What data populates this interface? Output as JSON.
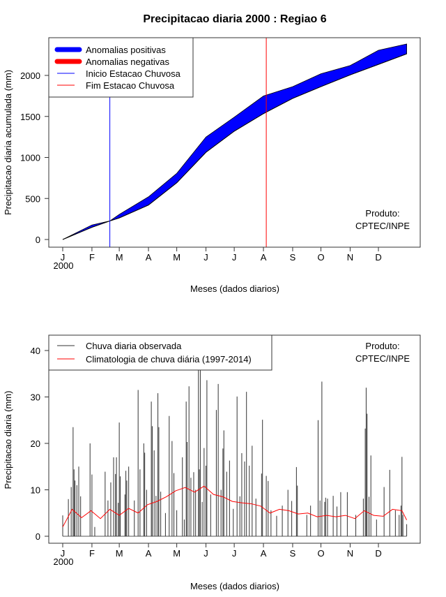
{
  "title": "Precipitacao diaria 2000 : Regiao 6",
  "credit_line1": "Produto:",
  "credit_line2": "CPTEC/INPE",
  "chart_data": [
    {
      "type": "area",
      "ylabel": "Precipitacao diaria acumulada (mm)",
      "xlabel": "Meses (dados diarios)",
      "year_label": "2000",
      "month_ticks": [
        "J",
        "F",
        "M",
        "A",
        "M",
        "J",
        "J",
        "A",
        "S",
        "O",
        "N",
        "D"
      ],
      "month_start_days": [
        1,
        32,
        61,
        92,
        122,
        153,
        183,
        214,
        245,
        275,
        306,
        336
      ],
      "ylim": [
        0,
        2400
      ],
      "yticks": [
        0,
        500,
        1000,
        1500,
        2000
      ],
      "legend": [
        "Anomalias positivas",
        "Anomalias negativas",
        "Inicio Estacao Chuvosa",
        "Fim Estacao Chuvosa"
      ],
      "legend_position": "top-left",
      "colors": {
        "positive": "#0000ff",
        "negative": "#ff0000",
        "start_line": "#0000ff",
        "end_line": "#ff0000"
      },
      "rainy_season_start_day": 51,
      "rainy_season_end_day": 217,
      "observed_cumulative": {
        "days": [
          1,
          32,
          51,
          61,
          92,
          122,
          153,
          183,
          214,
          245,
          275,
          306,
          336,
          366
        ],
        "values": [
          0,
          177,
          226,
          306,
          520,
          806,
          1249,
          1491,
          1749,
          1863,
          2020,
          2120,
          2306,
          2383
        ]
      },
      "climatology_cumulative": {
        "days": [
          1,
          32,
          51,
          61,
          92,
          122,
          153,
          183,
          214,
          245,
          275,
          306,
          336,
          366
        ],
        "values": [
          0,
          149,
          226,
          263,
          420,
          691,
          1063,
          1320,
          1534,
          1720,
          1863,
          2006,
          2134,
          2263
        ]
      }
    },
    {
      "type": "bar",
      "ylabel": "Precipitacao diaria (mm)",
      "xlabel": "Meses (dados diarios)",
      "year_label": "2000",
      "month_ticks": [
        "J",
        "F",
        "M",
        "A",
        "M",
        "J",
        "J",
        "A",
        "S",
        "O",
        "N",
        "D"
      ],
      "month_start_days": [
        1,
        32,
        61,
        92,
        122,
        153,
        183,
        214,
        245,
        275,
        306,
        336
      ],
      "ylim": [
        0,
        42
      ],
      "yticks": [
        0,
        10,
        20,
        30,
        40
      ],
      "legend": [
        "Chuva diaria observada",
        "Climatologia de chuva diária (1997-2014)"
      ],
      "legend_position": "top-left",
      "colors": {
        "observed": "#333333",
        "climatology": "#ff0000"
      },
      "observed_daily": [
        [
          1,
          4.5
        ],
        [
          7,
          8
        ],
        [
          10,
          10.6
        ],
        [
          12,
          23.5
        ],
        [
          13,
          14.4
        ],
        [
          14,
          12
        ],
        [
          16,
          11
        ],
        [
          18,
          15
        ],
        [
          20,
          8.6
        ],
        [
          30,
          20
        ],
        [
          32,
          13.3
        ],
        [
          35,
          2
        ],
        [
          46,
          13.9
        ],
        [
          49,
          7.7
        ],
        [
          52,
          11.6
        ],
        [
          55,
          17
        ],
        [
          57,
          13.4
        ],
        [
          58,
          17
        ],
        [
          60,
          7.2
        ],
        [
          61,
          24.5
        ],
        [
          62,
          12.9
        ],
        [
          67,
          9
        ],
        [
          68,
          14.1
        ],
        [
          69,
          12
        ],
        [
          71,
          15
        ],
        [
          77,
          7.7
        ],
        [
          81,
          31.5
        ],
        [
          83,
          14.4
        ],
        [
          87,
          20
        ],
        [
          88,
          18
        ],
        [
          90,
          10
        ],
        [
          95,
          29
        ],
        [
          96,
          23.7
        ],
        [
          98,
          18.5
        ],
        [
          100,
          8.7
        ],
        [
          102,
          30.8
        ],
        [
          103,
          23.5
        ],
        [
          105,
          9.6
        ],
        [
          110,
          5
        ],
        [
          114,
          25.9
        ],
        [
          117,
          20.5
        ],
        [
          119,
          13.6
        ],
        [
          122,
          5.6
        ],
        [
          128,
          17
        ],
        [
          130,
          3.6
        ],
        [
          132,
          29
        ],
        [
          133,
          20.3
        ],
        [
          135,
          32.3
        ],
        [
          137,
          12.6
        ],
        [
          140,
          13.8
        ],
        [
          142,
          10
        ],
        [
          145,
          38.6
        ],
        [
          146,
          14.4
        ],
        [
          147,
          38.6
        ],
        [
          149,
          7.4
        ],
        [
          151,
          19
        ],
        [
          153,
          15.2
        ],
        [
          154,
          33.6
        ],
        [
          158,
          9
        ],
        [
          164,
          27.2
        ],
        [
          166,
          32.8
        ],
        [
          169,
          10
        ],
        [
          171,
          18.9
        ],
        [
          172,
          22.8
        ],
        [
          175,
          13.9
        ],
        [
          178,
          16.3
        ],
        [
          182,
          5.9
        ],
        [
          186,
          30.1
        ],
        [
          189,
          8.6
        ],
        [
          191,
          17.9
        ],
        [
          194,
          16.1
        ],
        [
          196,
          31.1
        ],
        [
          199,
          15.2
        ],
        [
          202,
          19.5
        ],
        [
          206,
          8.1
        ],
        [
          212,
          13.5
        ],
        [
          213,
          25.1
        ],
        [
          217,
          13
        ],
        [
          219,
          11.9
        ],
        [
          222,
          5.6
        ],
        [
          228,
          4.4
        ],
        [
          234,
          6.6
        ],
        [
          240,
          10
        ],
        [
          244,
          7.6
        ],
        [
          249,
          14.9
        ],
        [
          250,
          10.9
        ],
        [
          260,
          4.6
        ],
        [
          264,
          6.6
        ],
        [
          272,
          25
        ],
        [
          274,
          7.7
        ],
        [
          276,
          33.3
        ],
        [
          279,
          7.4
        ],
        [
          280,
          8.3
        ],
        [
          282,
          8.1
        ],
        [
          288,
          8.7
        ],
        [
          292,
          6.4
        ],
        [
          296,
          9.5
        ],
        [
          303,
          9.5
        ],
        [
          312,
          4.6
        ],
        [
          320,
          8.1
        ],
        [
          322,
          23.2
        ],
        [
          323,
          32
        ],
        [
          324,
          26.4
        ],
        [
          326,
          8.5
        ],
        [
          328,
          17.4
        ],
        [
          334,
          3.6
        ],
        [
          342,
          10.6
        ],
        [
          348,
          14.3
        ],
        [
          354,
          5.6
        ],
        [
          358,
          4.6
        ],
        [
          360,
          6.6
        ],
        [
          361,
          17.1
        ],
        [
          362,
          4.6
        ],
        [
          366,
          2.6
        ]
      ],
      "climatology_daily": {
        "days": [
          1,
          11,
          21,
          31,
          41,
          51,
          61,
          71,
          81,
          91,
          101,
          111,
          121,
          131,
          141,
          151,
          161,
          171,
          181,
          191,
          201,
          211,
          221,
          231,
          241,
          251,
          261,
          271,
          281,
          291,
          301,
          311,
          321,
          331,
          341,
          351,
          361,
          366
        ],
        "values": [
          2,
          5.8,
          4,
          5.5,
          3.8,
          5.8,
          4.5,
          6,
          5,
          6.8,
          7.5,
          8.5,
          9.8,
          10.5,
          9.5,
          10.8,
          9,
          8.5,
          7.5,
          7.2,
          7,
          6.5,
          5,
          5.8,
          5.5,
          4.8,
          5,
          4.2,
          4.5,
          4.2,
          4.5,
          3.8,
          5.5,
          4.5,
          4.3,
          5.8,
          5.5,
          3.5
        ]
      }
    }
  ]
}
